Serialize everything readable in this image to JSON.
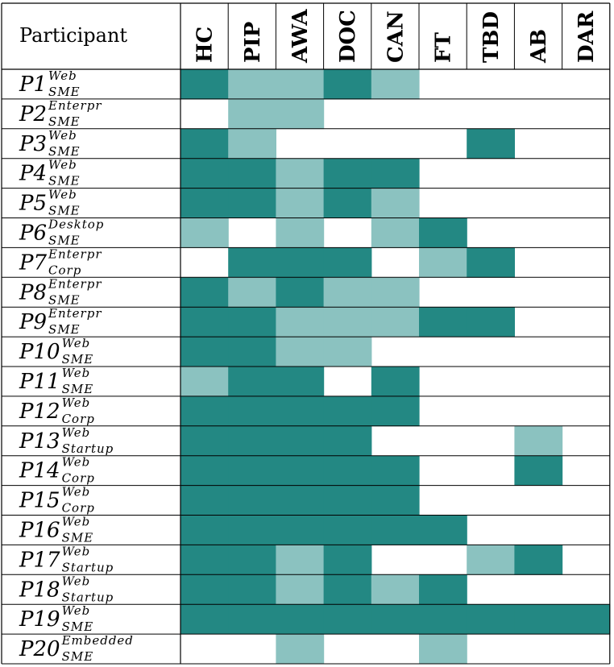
{
  "chart_data": {
    "type": "heatmap",
    "header": "Participant",
    "columns": [
      "HC",
      "PIP",
      "AWA",
      "DOC",
      "CAN",
      "FT",
      "TBD",
      "AB",
      "DAR"
    ],
    "legend_levels": {
      "0": "empty",
      "1": "light",
      "2": "dark"
    },
    "colors": {
      "dark": "#238883",
      "light": "#8bc2c0",
      "empty": "#ffffff",
      "lines": "#000000"
    },
    "rows": [
      {
        "name": "P1",
        "sup": "Web",
        "sub": "SME",
        "values": [
          2,
          1,
          1,
          2,
          1,
          0,
          0,
          0,
          0
        ]
      },
      {
        "name": "P2",
        "sup": "Enterpr",
        "sub": "SME",
        "values": [
          0,
          1,
          1,
          0,
          0,
          0,
          0,
          0,
          0
        ]
      },
      {
        "name": "P3",
        "sup": "Web",
        "sub": "SME",
        "values": [
          2,
          1,
          0,
          0,
          0,
          0,
          2,
          0,
          0
        ]
      },
      {
        "name": "P4",
        "sup": "Web",
        "sub": "SME",
        "values": [
          2,
          2,
          1,
          2,
          2,
          0,
          0,
          0,
          0
        ]
      },
      {
        "name": "P5",
        "sup": "Web",
        "sub": "SME",
        "values": [
          2,
          2,
          1,
          2,
          1,
          0,
          0,
          0,
          0
        ]
      },
      {
        "name": "P6",
        "sup": "Desktop",
        "sub": "SME",
        "values": [
          1,
          0,
          1,
          0,
          1,
          2,
          0,
          0,
          0
        ]
      },
      {
        "name": "P7",
        "sup": "Enterpr",
        "sub": "Corp",
        "values": [
          0,
          2,
          2,
          2,
          0,
          1,
          2,
          0,
          0
        ]
      },
      {
        "name": "P8",
        "sup": "Enterpr",
        "sub": "SME",
        "values": [
          2,
          1,
          2,
          1,
          1,
          0,
          0,
          0,
          0
        ]
      },
      {
        "name": "P9",
        "sup": "Enterpr",
        "sub": "SME",
        "values": [
          2,
          2,
          1,
          1,
          1,
          2,
          2,
          0,
          0
        ]
      },
      {
        "name": "P10",
        "sup": "Web",
        "sub": "SME",
        "values": [
          2,
          2,
          1,
          1,
          0,
          0,
          0,
          0,
          0
        ]
      },
      {
        "name": "P11",
        "sup": "Web",
        "sub": "SME",
        "values": [
          1,
          2,
          2,
          0,
          2,
          0,
          0,
          0,
          0
        ]
      },
      {
        "name": "P12",
        "sup": "Web",
        "sub": "Corp",
        "values": [
          2,
          2,
          2,
          2,
          2,
          0,
          0,
          0,
          0
        ]
      },
      {
        "name": "P13",
        "sup": "Web",
        "sub": "Startup",
        "values": [
          2,
          2,
          2,
          2,
          0,
          0,
          0,
          1,
          0
        ]
      },
      {
        "name": "P14",
        "sup": "Web",
        "sub": "Corp",
        "values": [
          2,
          2,
          2,
          2,
          2,
          0,
          0,
          2,
          0
        ]
      },
      {
        "name": "P15",
        "sup": "Web",
        "sub": "Corp",
        "values": [
          2,
          2,
          2,
          2,
          2,
          0,
          0,
          0,
          0
        ]
      },
      {
        "name": "P16",
        "sup": "Web",
        "sub": "SME",
        "values": [
          2,
          2,
          2,
          2,
          2,
          2,
          0,
          0,
          0
        ]
      },
      {
        "name": "P17",
        "sup": "Web",
        "sub": "Startup",
        "values": [
          2,
          2,
          1,
          2,
          0,
          0,
          1,
          2,
          0
        ]
      },
      {
        "name": "P18",
        "sup": "Web",
        "sub": "Startup",
        "values": [
          2,
          2,
          1,
          2,
          1,
          2,
          0,
          0,
          0
        ]
      },
      {
        "name": "P19",
        "sup": "Web",
        "sub": "SME",
        "values": [
          2,
          2,
          2,
          2,
          2,
          2,
          2,
          2,
          2
        ]
      },
      {
        "name": "P20",
        "sup": "Embedded",
        "sub": "SME",
        "values": [
          0,
          0,
          1,
          0,
          0,
          1,
          0,
          0,
          0
        ]
      }
    ]
  }
}
